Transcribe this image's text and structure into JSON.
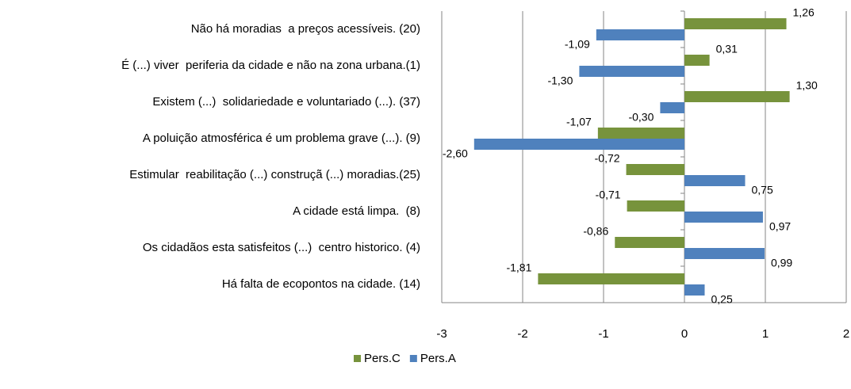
{
  "chart_data": {
    "type": "bar",
    "orientation": "horizontal",
    "categories": [
      "Não há moradias  a preços acessíveis. (20)",
      "É (...) viver  periferia da cidade e não na zona urbana.(1)",
      "Existem (...)  solidariedade e voluntariado (...). (37)",
      "A poluição atmosférica é um problema grave (...). (9)",
      "Estimular  reabilitação (...) construçã (...) moradias.(25)",
      "A cidade está limpa.  (8)",
      "Os cidadãos esta satisfeitos (...)  centro historico. (4)",
      "Há falta de ecopontos na cidade. (14)"
    ],
    "series": [
      {
        "name": "Pers.C",
        "color": "#77933c",
        "values": [
          1.26,
          0.31,
          1.3,
          -1.07,
          -0.72,
          -0.71,
          -0.86,
          -1.81
        ],
        "value_labels": [
          "1,26",
          "0,31",
          "1,30",
          "-1,07",
          "-0,72",
          "-0,71",
          "-0,86",
          "-1,81"
        ]
      },
      {
        "name": "Pers.A",
        "color": "#4f81bd",
        "values": [
          -1.09,
          -1.3,
          -0.3,
          -2.6,
          0.75,
          0.97,
          0.99,
          0.25
        ],
        "value_labels": [
          "-1,09",
          "-1,30",
          "-0,30",
          "-2,60",
          "0,75",
          "0,97",
          "0,99",
          "0,25"
        ]
      }
    ],
    "xlim": [
      -3,
      2
    ],
    "xticks": [
      -3,
      -2,
      -1,
      0,
      1,
      2
    ],
    "grid": true,
    "legend": "bottom"
  }
}
